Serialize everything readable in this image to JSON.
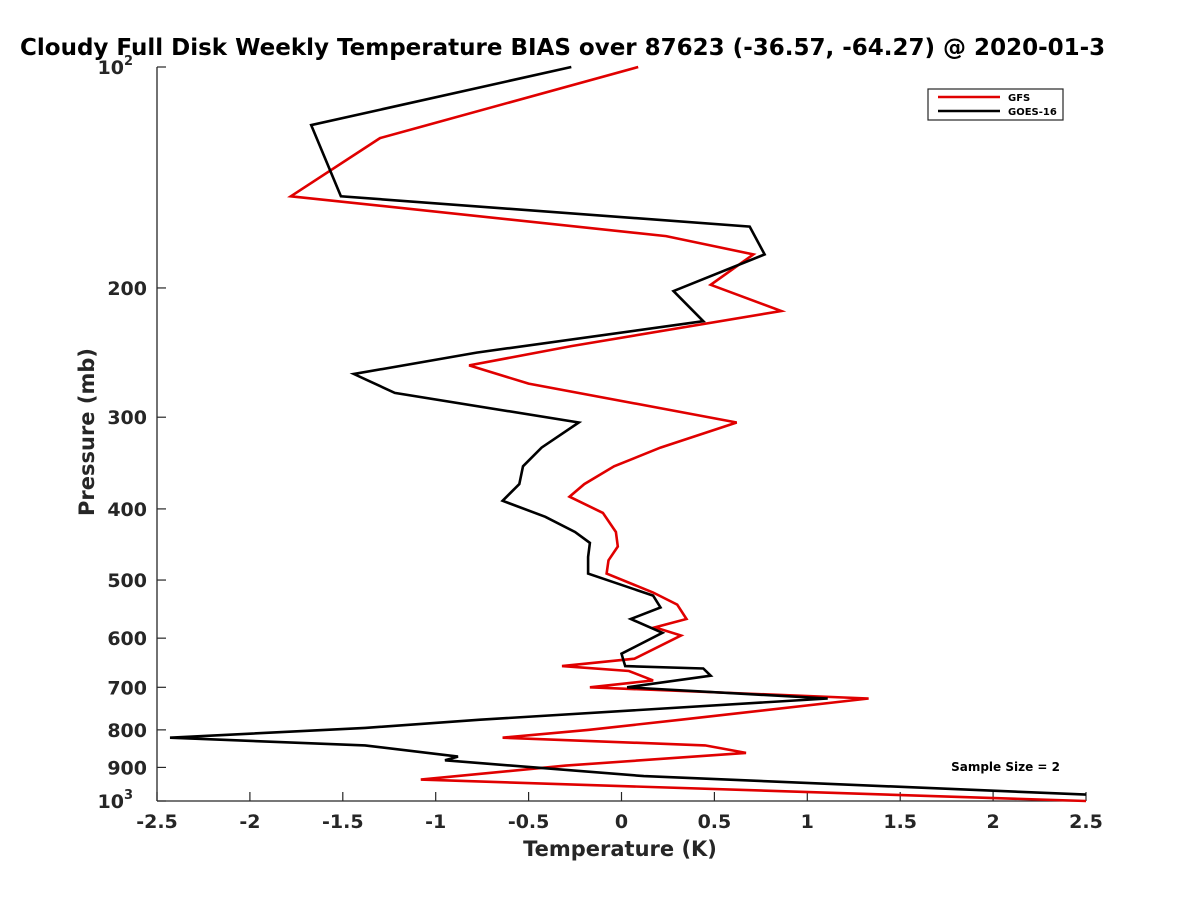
{
  "chart_data": {
    "type": "line",
    "title": "Cloudy Full Disk Weekly Temperature BIAS over 87623 (-36.57, -64.27) @ 2020-01-3",
    "xlabel": "Temperature (K)",
    "ylabel": "Pressure (mb)",
    "xlim": [
      -2.5,
      2.5
    ],
    "ylim": [
      100,
      1000
    ],
    "y_scale": "log",
    "y_reversed": true,
    "x_ticks": [
      "-2.5",
      "-2",
      "-1.5",
      "-1",
      "-0.5",
      "0",
      "0.5",
      "1",
      "1.5",
      "2",
      "2.5"
    ],
    "y_ticks": [
      {
        "value": 100,
        "base": "10",
        "exp": "2"
      },
      {
        "value": 200,
        "label": "200"
      },
      {
        "value": 300,
        "label": "300"
      },
      {
        "value": 400,
        "label": "400"
      },
      {
        "value": 500,
        "label": "500"
      },
      {
        "value": 600,
        "label": "600"
      },
      {
        "value": 700,
        "label": "700"
      },
      {
        "value": 800,
        "label": "800"
      },
      {
        "value": 900,
        "label": "900"
      },
      {
        "value": 1000,
        "base": "10",
        "exp": "3"
      }
    ],
    "legend": "top-right",
    "annotation": "Sample Size = 2",
    "series": [
      {
        "name": "GFS",
        "color": "#e00000",
        "points": [
          [
            0.09,
            100
          ],
          [
            -1.3,
            125
          ],
          [
            -1.78,
            150
          ],
          [
            0.24,
            170
          ],
          [
            0.71,
            180
          ],
          [
            0.48,
            198
          ],
          [
            0.86,
            215
          ],
          [
            -0.27,
            240
          ],
          [
            -0.82,
            255
          ],
          [
            -0.5,
            270
          ],
          [
            0.62,
            305
          ],
          [
            0.21,
            330
          ],
          [
            -0.04,
            350
          ],
          [
            -0.2,
            370
          ],
          [
            -0.28,
            385
          ],
          [
            -0.1,
            405
          ],
          [
            -0.03,
            430
          ],
          [
            -0.02,
            450
          ],
          [
            -0.07,
            470
          ],
          [
            -0.08,
            490
          ],
          [
            0.17,
            520
          ],
          [
            0.3,
            540
          ],
          [
            0.35,
            565
          ],
          [
            0.18,
            580
          ],
          [
            0.32,
            595
          ],
          [
            0.07,
            640
          ],
          [
            -0.32,
            655
          ],
          [
            0.04,
            665
          ],
          [
            0.17,
            685
          ],
          [
            -0.17,
            700
          ],
          [
            1.33,
            725
          ],
          [
            0.32,
            775
          ],
          [
            -0.18,
            800
          ],
          [
            -0.64,
            820
          ],
          [
            0.45,
            840
          ],
          [
            0.67,
            860
          ],
          [
            -0.3,
            895
          ],
          [
            -1.08,
            935
          ],
          [
            2.5,
            1000
          ]
        ]
      },
      {
        "name": "GOES-16",
        "color": "#000000",
        "points": [
          [
            -0.27,
            100
          ],
          [
            -1.67,
            120
          ],
          [
            -1.51,
            150
          ],
          [
            0.69,
            165
          ],
          [
            0.77,
            180
          ],
          [
            0.28,
            202
          ],
          [
            0.44,
            222
          ],
          [
            -0.78,
            245
          ],
          [
            -1.44,
            262
          ],
          [
            -1.22,
            278
          ],
          [
            -0.23,
            305
          ],
          [
            -0.43,
            330
          ],
          [
            -0.53,
            350
          ],
          [
            -0.55,
            370
          ],
          [
            -0.64,
            390
          ],
          [
            -0.41,
            410
          ],
          [
            -0.25,
            430
          ],
          [
            -0.17,
            445
          ],
          [
            -0.18,
            465
          ],
          [
            -0.18,
            490
          ],
          [
            0.17,
            525
          ],
          [
            0.21,
            545
          ],
          [
            0.05,
            565
          ],
          [
            0.22,
            590
          ],
          [
            0.0,
            630
          ],
          [
            0.02,
            655
          ],
          [
            0.44,
            660
          ],
          [
            0.48,
            675
          ],
          [
            0.03,
            700
          ],
          [
            1.11,
            725
          ],
          [
            -0.76,
            775
          ],
          [
            -1.38,
            795
          ],
          [
            -2.43,
            820
          ],
          [
            -1.38,
            840
          ],
          [
            -0.88,
            870
          ],
          [
            -0.95,
            880
          ],
          [
            0.12,
            925
          ],
          [
            2.5,
            980
          ]
        ]
      }
    ]
  }
}
